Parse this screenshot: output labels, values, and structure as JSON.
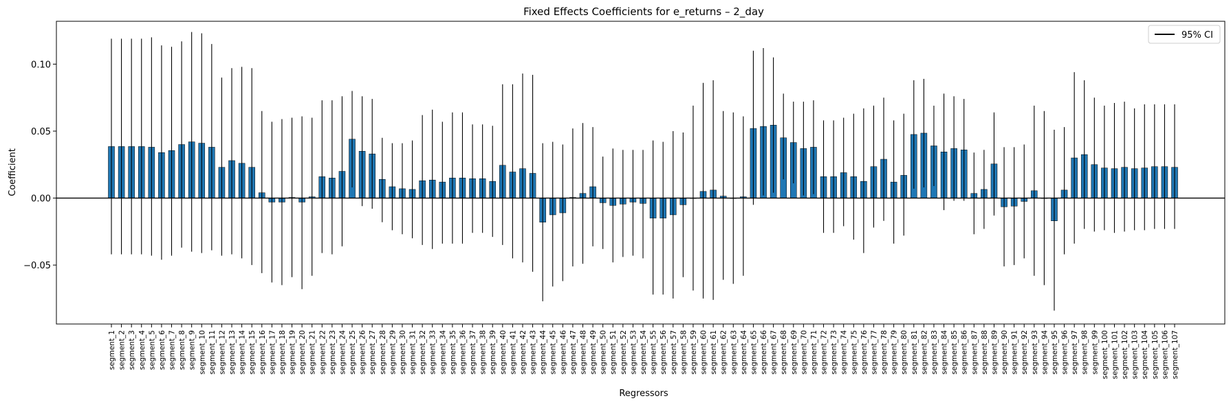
{
  "chart_data": {
    "type": "bar",
    "title": "Fixed Effects Coefficients for e_returns – 2_day",
    "xlabel": "Regressors",
    "ylabel": "Coefficient",
    "ylim": [
      -0.094,
      0.132
    ],
    "yticks": [
      -0.05,
      0.0,
      0.05,
      0.1
    ],
    "ytick_labels": [
      "−0.05",
      "0.00",
      "0.05",
      "0.10"
    ],
    "legend": {
      "label": "95% CI",
      "position": "top-right"
    },
    "grid": false,
    "bar_color": "#1f77b4",
    "errorbar_color": "#000000",
    "zero_line": true,
    "categories": [
      "segment_1",
      "segment_2",
      "segment_3",
      "segment_4",
      "segment_5",
      "segment_6",
      "segment_7",
      "segment_8",
      "segment_9",
      "segment_10",
      "segment_11",
      "segment_12",
      "segment_13",
      "segment_14",
      "segment_15",
      "segment_16",
      "segment_17",
      "segment_18",
      "segment_19",
      "segment_20",
      "segment_21",
      "segment_22",
      "segment_23",
      "segment_24",
      "segment_25",
      "segment_26",
      "segment_27",
      "segment_28",
      "segment_29",
      "segment_30",
      "segment_31",
      "segment_32",
      "segment_33",
      "segment_34",
      "segment_35",
      "segment_36",
      "segment_37",
      "segment_38",
      "segment_39",
      "segment_40",
      "segment_41",
      "segment_42",
      "segment_43",
      "segment_44",
      "segment_45",
      "segment_46",
      "segment_47",
      "segment_48",
      "segment_49",
      "segment_50",
      "segment_51",
      "segment_52",
      "segment_53",
      "segment_54",
      "segment_55",
      "segment_56",
      "segment_57",
      "segment_58",
      "segment_59",
      "segment_60",
      "segment_61",
      "segment_62",
      "segment_63",
      "segment_64",
      "segment_65",
      "segment_66",
      "segment_67",
      "segment_68",
      "segment_69",
      "segment_70",
      "segment_71",
      "segment_72",
      "segment_73",
      "segment_74",
      "segment_75",
      "segment_76",
      "segment_77",
      "segment_78",
      "segment_79",
      "segment_80",
      "segment_81",
      "segment_82",
      "segment_83",
      "segment_84",
      "segment_85",
      "segment_86",
      "segment_87",
      "segment_88",
      "segment_89",
      "segment_90",
      "segment_91",
      "segment_92",
      "segment_93",
      "segment_94",
      "segment_95",
      "segment_96",
      "segment_97",
      "segment_98",
      "segment_99",
      "segment_100",
      "segment_101",
      "segment_102",
      "segment_103",
      "segment_104",
      "segment_105",
      "segment_106",
      "segment_107"
    ],
    "values": [
      0.0385,
      0.0385,
      0.0385,
      0.0385,
      0.038,
      0.034,
      0.0355,
      0.04,
      0.042,
      0.041,
      0.038,
      0.023,
      0.028,
      0.026,
      0.023,
      0.004,
      -0.003,
      -0.003,
      0.0005,
      -0.003,
      0.001,
      0.016,
      0.015,
      0.02,
      0.044,
      0.035,
      0.033,
      0.014,
      0.0085,
      0.007,
      0.0065,
      0.013,
      0.0135,
      0.012,
      0.015,
      0.015,
      0.0145,
      0.0145,
      0.0125,
      0.0245,
      0.0195,
      0.022,
      0.0185,
      -0.018,
      -0.0125,
      -0.011,
      0.0005,
      0.0035,
      0.0085,
      -0.0035,
      -0.0055,
      -0.0045,
      -0.003,
      -0.004,
      -0.015,
      -0.015,
      -0.0125,
      -0.005,
      0.0,
      0.005,
      0.006,
      0.0015,
      0.0,
      0.001,
      0.052,
      0.0535,
      0.0545,
      0.045,
      0.0415,
      0.037,
      0.038,
      0.016,
      0.016,
      0.019,
      0.016,
      0.0125,
      0.0235,
      0.029,
      0.012,
      0.017,
      0.0475,
      0.0485,
      0.039,
      0.0345,
      0.037,
      0.036,
      0.0035,
      0.0065,
      0.0255,
      -0.0065,
      -0.006,
      -0.0025,
      0.0055,
      0.0,
      -0.017,
      0.006,
      0.03,
      0.0325,
      0.025,
      0.0225,
      0.022,
      0.023,
      0.022,
      0.0225,
      0.0235,
      0.0235,
      0.023
    ],
    "ci_lower": [
      -0.042,
      -0.042,
      -0.042,
      -0.042,
      -0.043,
      -0.046,
      -0.043,
      -0.037,
      -0.04,
      -0.041,
      -0.039,
      -0.043,
      -0.042,
      -0.045,
      -0.05,
      -0.056,
      -0.063,
      -0.065,
      -0.059,
      -0.068,
      -0.058,
      -0.041,
      -0.042,
      -0.036,
      0.008,
      -0.006,
      -0.008,
      -0.018,
      -0.024,
      -0.027,
      -0.03,
      -0.035,
      -0.038,
      -0.034,
      -0.034,
      -0.034,
      -0.026,
      -0.026,
      -0.029,
      -0.035,
      -0.045,
      -0.048,
      -0.055,
      -0.077,
      -0.066,
      -0.062,
      -0.051,
      -0.049,
      -0.036,
      -0.038,
      -0.048,
      -0.044,
      -0.043,
      -0.045,
      -0.072,
      -0.072,
      -0.075,
      -0.059,
      -0.069,
      -0.075,
      -0.076,
      -0.061,
      -0.064,
      -0.058,
      -0.005,
      0.002,
      0.004,
      0.014,
      0.011,
      0.002,
      0.003,
      -0.026,
      -0.026,
      -0.021,
      -0.031,
      -0.041,
      -0.022,
      -0.017,
      -0.034,
      -0.028,
      0.007,
      0.008,
      0.009,
      -0.009,
      -0.002,
      -0.002,
      -0.027,
      -0.023,
      -0.013,
      -0.051,
      -0.05,
      -0.045,
      -0.058,
      -0.065,
      -0.084,
      -0.042,
      -0.034,
      -0.023,
      -0.025,
      -0.024,
      -0.026,
      -0.025,
      -0.024,
      -0.024,
      -0.023,
      -0.023,
      -0.023
    ],
    "ci_upper": [
      0.119,
      0.119,
      0.119,
      0.119,
      0.12,
      0.114,
      0.113,
      0.117,
      0.124,
      0.123,
      0.115,
      0.09,
      0.097,
      0.098,
      0.097,
      0.065,
      0.057,
      0.059,
      0.06,
      0.061,
      0.06,
      0.073,
      0.073,
      0.076,
      0.08,
      0.076,
      0.074,
      0.045,
      0.041,
      0.041,
      0.043,
      0.062,
      0.066,
      0.057,
      0.064,
      0.064,
      0.055,
      0.055,
      0.054,
      0.085,
      0.085,
      0.093,
      0.092,
      0.041,
      0.042,
      0.04,
      0.052,
      0.056,
      0.053,
      0.031,
      0.037,
      0.036,
      0.036,
      0.036,
      0.043,
      0.042,
      0.05,
      0.049,
      0.069,
      0.086,
      0.088,
      0.065,
      0.064,
      0.061,
      0.11,
      0.112,
      0.105,
      0.078,
      0.072,
      0.072,
      0.073,
      0.058,
      0.058,
      0.06,
      0.063,
      0.067,
      0.069,
      0.075,
      0.058,
      0.063,
      0.088,
      0.089,
      0.069,
      0.078,
      0.076,
      0.074,
      0.034,
      0.036,
      0.064,
      0.038,
      0.038,
      0.04,
      0.069,
      0.065,
      0.051,
      0.053,
      0.094,
      0.088,
      0.075,
      0.069,
      0.071,
      0.072,
      0.067,
      0.07,
      0.07,
      0.07,
      0.07
    ]
  }
}
